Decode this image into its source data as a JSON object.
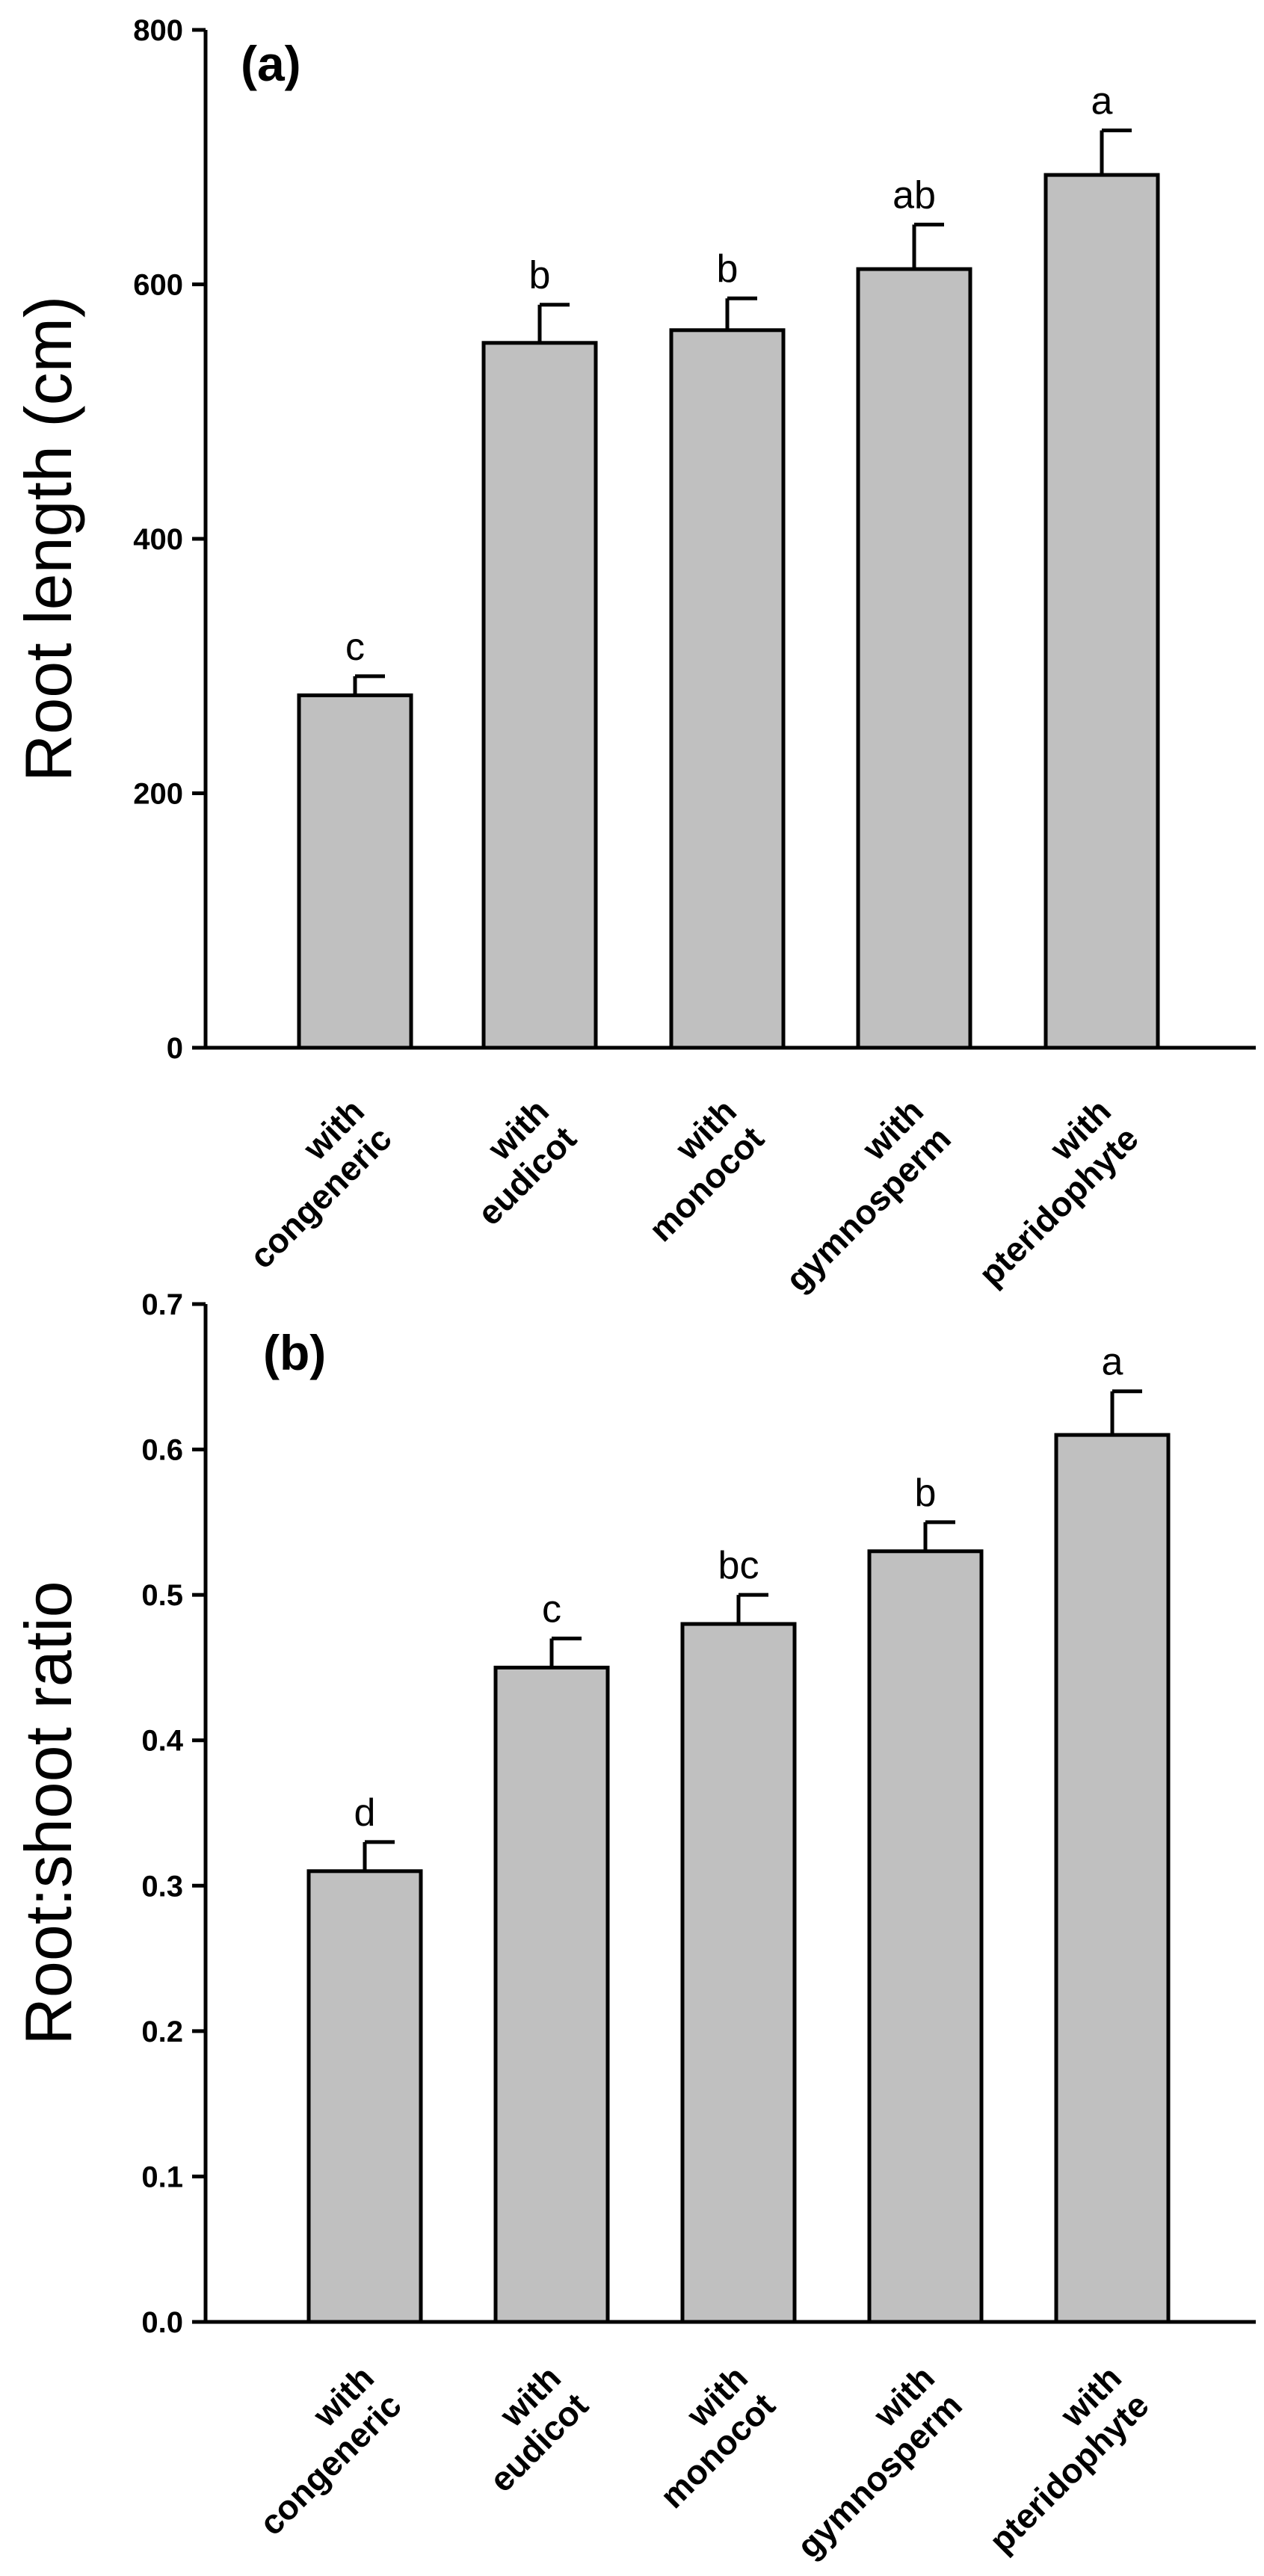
{
  "chart_data": [
    {
      "type": "bar",
      "panel_label": "(a)",
      "ylabel": "Root length (cm)",
      "xlabel": "",
      "ylim": [
        0,
        800
      ],
      "yticks": [
        0,
        200,
        400,
        600,
        800
      ],
      "categories": [
        [
          "with",
          "congeneric"
        ],
        [
          "with",
          "eudicot"
        ],
        [
          "with",
          "monocot"
        ],
        [
          "with",
          "gymnosperm"
        ],
        [
          "with",
          "pteridophyte"
        ]
      ],
      "values": [
        277,
        554,
        564,
        612,
        686
      ],
      "errors": [
        15,
        30,
        25,
        35,
        35
      ],
      "significance": [
        "c",
        "b",
        "b",
        "ab",
        "a"
      ],
      "bar_color": "#c0c0c0"
    },
    {
      "type": "bar",
      "panel_label": "(b)",
      "ylabel": "Root:shoot ratio",
      "xlabel": "",
      "ylim": [
        0,
        0.7
      ],
      "yticks": [
        "0.0",
        "0.1",
        "0.2",
        "0.3",
        "0.4",
        "0.5",
        "0.6",
        "0.7"
      ],
      "categories": [
        [
          "with",
          "congeneric"
        ],
        [
          "with",
          "eudicot"
        ],
        [
          "with",
          "monocot"
        ],
        [
          "with",
          "gymnosperm"
        ],
        [
          "with",
          "pteridophyte"
        ]
      ],
      "values": [
        0.31,
        0.45,
        0.48,
        0.53,
        0.61
      ],
      "errors": [
        0.02,
        0.02,
        0.02,
        0.02,
        0.03
      ],
      "significance": [
        "d",
        "c",
        "bc",
        "b",
        "a"
      ],
      "bar_color": "#c0c0c0"
    }
  ]
}
